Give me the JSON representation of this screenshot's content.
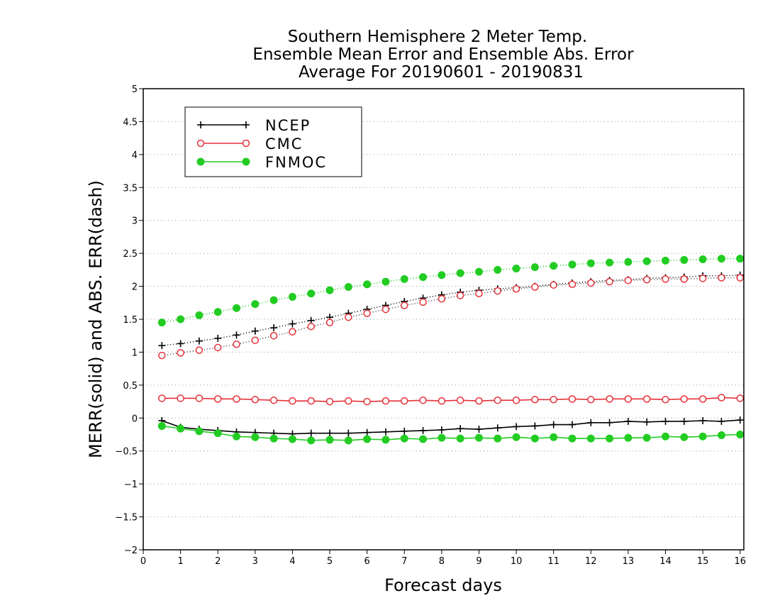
{
  "chart_data": {
    "type": "line",
    "title": "Southern Hemisphere 2 Meter Temp.",
    "subtitle": "Ensemble Mean Error and Ensemble Abs. Error",
    "subtitle2": "Average For 20190601 - 20190831",
    "xlabel": "Forecast days",
    "ylabel": "MERR(solid) and ABS. ERR(dash)",
    "xlim": [
      0,
      16.1
    ],
    "ylim": [
      -2,
      5
    ],
    "xticks": [
      "0",
      "1",
      "2",
      "3",
      "4",
      "5",
      "6",
      "7",
      "8",
      "9",
      "10",
      "11",
      "12",
      "13",
      "14",
      "15",
      "16"
    ],
    "yticks": [
      "5",
      "4.5",
      "4",
      "3.5",
      "3",
      "2.5",
      "2",
      "1.5",
      "1",
      "0.5",
      "0",
      "-0.5",
      "-1",
      "-1.5",
      "-2"
    ],
    "grid": "horizontal dotted",
    "legend_position": "top-left",
    "x": [
      0.5,
      1,
      1.5,
      2,
      2.5,
      3,
      3.5,
      4,
      4.5,
      5,
      5.5,
      6,
      6.5,
      7,
      7.5,
      8,
      8.5,
      9,
      9.5,
      10,
      10.5,
      11,
      11.5,
      12,
      12.5,
      13,
      13.5,
      14,
      14.5,
      15,
      15.5,
      16
    ],
    "series": [
      {
        "name": "NCEP",
        "color": "#000000",
        "marker": "plus",
        "merr": [
          -0.04,
          -0.14,
          -0.17,
          -0.19,
          -0.21,
          -0.22,
          -0.23,
          -0.24,
          -0.23,
          -0.23,
          -0.23,
          -0.22,
          -0.21,
          -0.2,
          -0.19,
          -0.18,
          -0.16,
          -0.17,
          -0.15,
          -0.13,
          -0.12,
          -0.1,
          -0.1,
          -0.07,
          -0.07,
          -0.05,
          -0.06,
          -0.05,
          -0.05,
          -0.04,
          -0.05,
          -0.03
        ],
        "abs_err": [
          1.1,
          1.13,
          1.17,
          1.21,
          1.26,
          1.32,
          1.37,
          1.43,
          1.48,
          1.53,
          1.59,
          1.65,
          1.71,
          1.77,
          1.82,
          1.87,
          1.91,
          1.94,
          1.96,
          1.98,
          2.0,
          2.03,
          2.05,
          2.07,
          2.09,
          2.1,
          2.12,
          2.13,
          2.14,
          2.16,
          2.16,
          2.17
        ]
      },
      {
        "name": "CMC",
        "color": "#e8303a",
        "marker": "open-circle",
        "merr": [
          0.3,
          0.3,
          0.3,
          0.29,
          0.29,
          0.28,
          0.27,
          0.26,
          0.26,
          0.25,
          0.26,
          0.25,
          0.26,
          0.26,
          0.27,
          0.26,
          0.27,
          0.26,
          0.27,
          0.27,
          0.28,
          0.28,
          0.29,
          0.28,
          0.29,
          0.29,
          0.29,
          0.28,
          0.29,
          0.29,
          0.31,
          0.3
        ],
        "abs_err": [
          0.95,
          0.99,
          1.03,
          1.07,
          1.12,
          1.18,
          1.25,
          1.31,
          1.39,
          1.45,
          1.53,
          1.59,
          1.65,
          1.71,
          1.76,
          1.81,
          1.86,
          1.89,
          1.93,
          1.96,
          1.99,
          2.02,
          2.03,
          2.05,
          2.07,
          2.09,
          2.1,
          2.11,
          2.11,
          2.12,
          2.13,
          2.13
        ]
      },
      {
        "name": "FNMOC",
        "color": "#22cc22",
        "marker": "filled-circle",
        "merr": [
          -0.12,
          -0.16,
          -0.2,
          -0.23,
          -0.28,
          -0.29,
          -0.31,
          -0.32,
          -0.34,
          -0.33,
          -0.34,
          -0.32,
          -0.33,
          -0.31,
          -0.32,
          -0.3,
          -0.31,
          -0.3,
          -0.31,
          -0.29,
          -0.31,
          -0.29,
          -0.31,
          -0.31,
          -0.31,
          -0.3,
          -0.3,
          -0.28,
          -0.29,
          -0.28,
          -0.26,
          -0.25
        ],
        "abs_err": [
          1.45,
          1.5,
          1.56,
          1.61,
          1.67,
          1.73,
          1.79,
          1.84,
          1.89,
          1.94,
          1.99,
          2.03,
          2.07,
          2.11,
          2.14,
          2.17,
          2.2,
          2.22,
          2.25,
          2.27,
          2.29,
          2.31,
          2.33,
          2.35,
          2.36,
          2.37,
          2.38,
          2.39,
          2.4,
          2.41,
          2.42,
          2.42
        ]
      }
    ]
  }
}
